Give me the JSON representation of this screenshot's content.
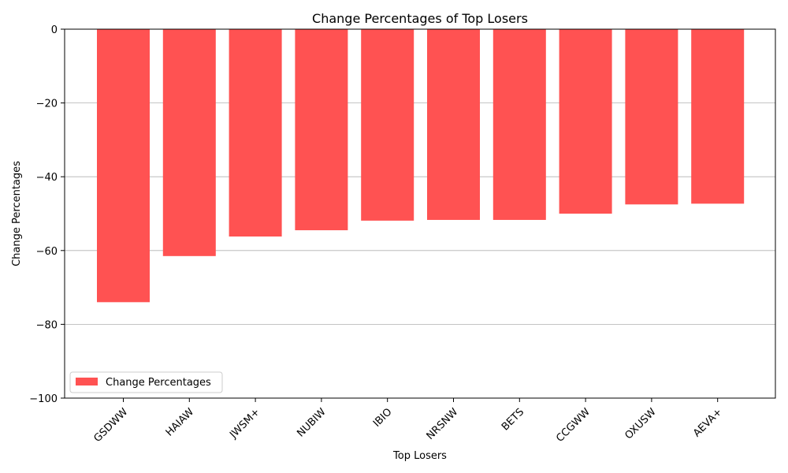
{
  "chart_data": {
    "type": "bar",
    "title": "Change Percentages of Top Losers",
    "xlabel": "Top Losers",
    "ylabel": "Change Percentages",
    "categories": [
      "GSDWW",
      "HAIAW",
      "JWSM+",
      "NUBIW",
      "IBIO",
      "NRSNW",
      "BETS",
      "CCGWW",
      "OXUSW",
      "AEVA+"
    ],
    "series": [
      {
        "name": "Change Percentages",
        "values": [
          -74.0,
          -61.5,
          -56.2,
          -54.5,
          -51.9,
          -51.7,
          -51.7,
          -50.0,
          -47.5,
          -47.3
        ],
        "color": "#ff5252"
      }
    ],
    "ylim": [
      -100,
      0
    ],
    "yticks": [
      0,
      -20,
      -40,
      -60,
      -80,
      -100
    ],
    "ytick_labels": [
      "0",
      "−20",
      "−40",
      "−60",
      "−80",
      "−100"
    ],
    "grid": "y",
    "legend_position": "lower-left"
  }
}
